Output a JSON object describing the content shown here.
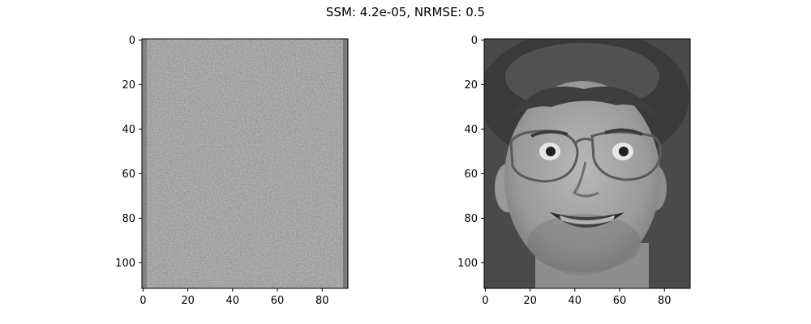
{
  "figure": {
    "suptitle": "SSM: 4.2e-05, NRMSE: 0.5"
  },
  "chart_data": [
    {
      "type": "heatmap",
      "subject": "residual / noise-like grayscale image (mostly uniform mid-gray with sparse bright and dark speckles)",
      "colormap": "gray",
      "base_gray": "#8c8c8c",
      "xlim": [
        -0.5,
        91.5
      ],
      "ylim": [
        111.5,
        -0.5
      ],
      "y_axis_inverted": true,
      "xticks": [
        0,
        20,
        40,
        60,
        80
      ],
      "yticks": [
        0,
        20,
        40,
        60,
        80,
        100
      ],
      "xtick_labels": [
        "0",
        "20",
        "40",
        "60",
        "80"
      ],
      "ytick_labels": [
        "0",
        "20",
        "40",
        "60",
        "80",
        "100"
      ],
      "title": "",
      "xlabel": "",
      "ylabel": ""
    },
    {
      "type": "heatmap",
      "subject": "grayscale photograph of a smiling man with curly hair, aviator glasses, and stubble",
      "colormap": "gray",
      "background_gray": "#4a4a4a",
      "xlim": [
        -0.5,
        91.5
      ],
      "ylim": [
        111.5,
        -0.5
      ],
      "y_axis_inverted": true,
      "xticks": [
        0,
        20,
        40,
        60,
        80
      ],
      "yticks": [
        0,
        20,
        40,
        60,
        80,
        100
      ],
      "xtick_labels": [
        "0",
        "20",
        "40",
        "60",
        "80"
      ],
      "ytick_labels": [
        "0",
        "20",
        "40",
        "60",
        "80",
        "100"
      ],
      "title": "",
      "xlabel": "",
      "ylabel": ""
    }
  ]
}
